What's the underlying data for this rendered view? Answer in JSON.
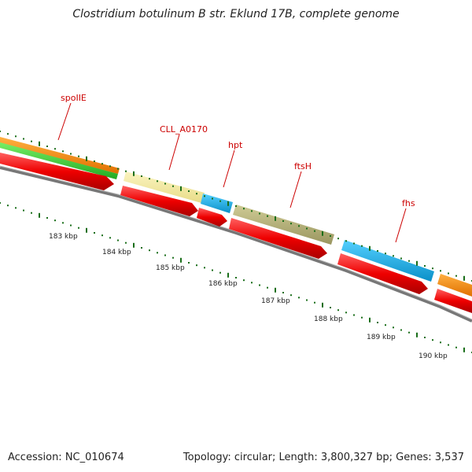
{
  "title": "Clostridium botulinum B str. Eklund 17B, complete genome",
  "footer": {
    "accession": "Accession: NC_010674",
    "summary": "Topology: circular; Length: 3,800,327 bp; Genes: 3,537"
  },
  "gene_labels": [
    "spoIIE",
    "CLL_A0170",
    "hpt",
    "ftsH",
    "fhs"
  ],
  "scale_labels": [
    "183 kbp",
    "184 kbp",
    "185 kbp",
    "186 kbp",
    "187 kbp",
    "188 kbp",
    "189 kbp",
    "190 kbp"
  ],
  "colors": {
    "forward_orange": "#ff8c00",
    "green": "#33cc33",
    "pale_yellow": "#f2e89a",
    "cyan": "#19b6ee",
    "olive": "#b8b47a",
    "red": "#ee1111",
    "backbone": "#888888",
    "tick": "#1a6e1a",
    "label": "#cc0000"
  }
}
